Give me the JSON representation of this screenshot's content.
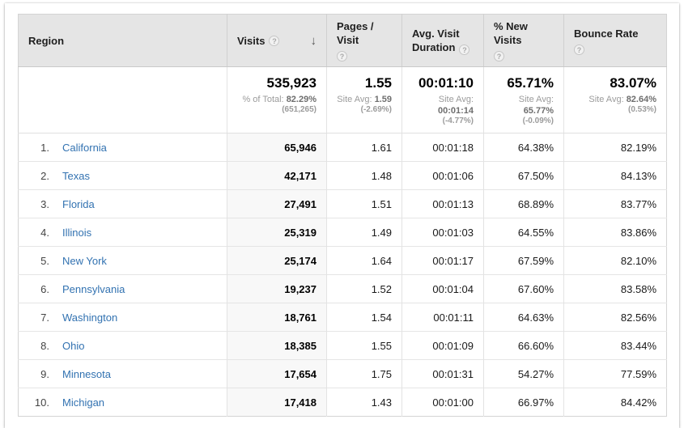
{
  "colors": {
    "header_bg": "#e5e5e5",
    "table_border": "#d4d4d4",
    "row_divider": "#e5e5e5",
    "link_blue": "#3272b1",
    "sorted_column_bg": "#f8f8f8",
    "summary_muted_gray": "#9b9b9b"
  },
  "icons": {
    "help_glyph": "?",
    "sort_desc_glyph": "↓"
  },
  "table": {
    "headers": {
      "region": "Region",
      "visits": "Visits",
      "pages_per_visit": "Pages / Visit",
      "avg_visit_duration": "Avg. Visit Duration",
      "pct_new_visits": "% New Visits",
      "bounce_rate": "Bounce Rate"
    },
    "sorted_column": "Visits",
    "sort_direction": "descending",
    "summary": {
      "visits": {
        "value": "535,923",
        "label": "% of Total:",
        "avg": "82.29%",
        "note": "(651,265)"
      },
      "pages_per_visit": {
        "value": "1.55",
        "label": "Site Avg:",
        "avg": "1.59",
        "note": "(-2.69%)"
      },
      "avg_visit_duration": {
        "value": "00:01:10",
        "label": "Site Avg:",
        "avg": "00:01:14",
        "note": "(-4.77%)"
      },
      "pct_new_visits": {
        "value": "65.71%",
        "label": "Site Avg:",
        "avg": "65.77%",
        "note": "(-0.09%)"
      },
      "bounce_rate": {
        "value": "83.07%",
        "label": "Site Avg:",
        "avg": "82.64%",
        "note": "(0.53%)"
      }
    },
    "rows": [
      {
        "rank": "1.",
        "region": "California",
        "visits": "65,946",
        "pages_per_visit": "1.61",
        "avg_visit_duration": "00:01:18",
        "pct_new_visits": "64.38%",
        "bounce_rate": "82.19%"
      },
      {
        "rank": "2.",
        "region": "Texas",
        "visits": "42,171",
        "pages_per_visit": "1.48",
        "avg_visit_duration": "00:01:06",
        "pct_new_visits": "67.50%",
        "bounce_rate": "84.13%"
      },
      {
        "rank": "3.",
        "region": "Florida",
        "visits": "27,491",
        "pages_per_visit": "1.51",
        "avg_visit_duration": "00:01:13",
        "pct_new_visits": "68.89%",
        "bounce_rate": "83.77%"
      },
      {
        "rank": "4.",
        "region": "Illinois",
        "visits": "25,319",
        "pages_per_visit": "1.49",
        "avg_visit_duration": "00:01:03",
        "pct_new_visits": "64.55%",
        "bounce_rate": "83.86%"
      },
      {
        "rank": "5.",
        "region": "New York",
        "visits": "25,174",
        "pages_per_visit": "1.64",
        "avg_visit_duration": "00:01:17",
        "pct_new_visits": "67.59%",
        "bounce_rate": "82.10%"
      },
      {
        "rank": "6.",
        "region": "Pennsylvania",
        "visits": "19,237",
        "pages_per_visit": "1.52",
        "avg_visit_duration": "00:01:04",
        "pct_new_visits": "67.60%",
        "bounce_rate": "83.58%"
      },
      {
        "rank": "7.",
        "region": "Washington",
        "visits": "18,761",
        "pages_per_visit": "1.54",
        "avg_visit_duration": "00:01:11",
        "pct_new_visits": "64.63%",
        "bounce_rate": "82.56%"
      },
      {
        "rank": "8.",
        "region": "Ohio",
        "visits": "18,385",
        "pages_per_visit": "1.55",
        "avg_visit_duration": "00:01:09",
        "pct_new_visits": "66.60%",
        "bounce_rate": "83.44%"
      },
      {
        "rank": "9.",
        "region": "Minnesota",
        "visits": "17,654",
        "pages_per_visit": "1.75",
        "avg_visit_duration": "00:01:31",
        "pct_new_visits": "54.27%",
        "bounce_rate": "77.59%"
      },
      {
        "rank": "10.",
        "region": "Michigan",
        "visits": "17,418",
        "pages_per_visit": "1.43",
        "avg_visit_duration": "00:01:00",
        "pct_new_visits": "66.97%",
        "bounce_rate": "84.42%"
      }
    ]
  }
}
